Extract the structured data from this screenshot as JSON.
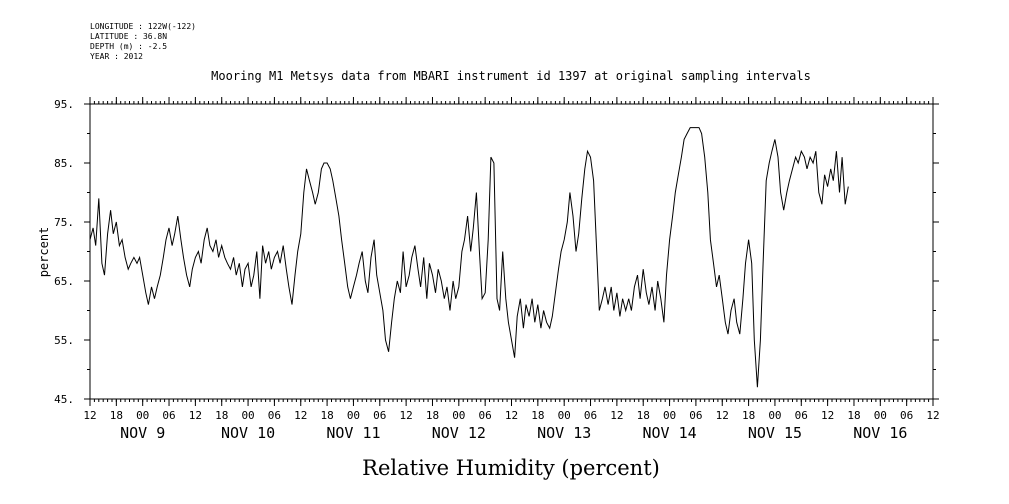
{
  "metadata": {
    "longitude": "LONGITUDE : 122W(-122)",
    "latitude": "LATITUDE : 36.8N",
    "depth": "DEPTH (m) : -2.5",
    "year": "YEAR : 2012"
  },
  "chart_data": {
    "type": "line",
    "title": "Mooring M1 Metsys data from MBARI instrument id 1397 at original sampling intervals",
    "xlabel": "Relative Humidity (percent)",
    "ylabel": "percent",
    "ylim": [
      45,
      95
    ],
    "y_ticks": [
      "95.",
      "85.",
      "75.",
      "65.",
      "55.",
      "45."
    ],
    "y_tick_values": [
      95,
      85,
      75,
      65,
      55,
      45
    ],
    "x_hour_labels": [
      "12",
      "18",
      "00",
      "06",
      "12",
      "18",
      "00",
      "06",
      "12",
      "18",
      "00",
      "06",
      "12",
      "18",
      "00",
      "06",
      "12",
      "18",
      "00",
      "06",
      "12",
      "18",
      "00",
      "06",
      "12",
      "18",
      "00",
      "06",
      "12",
      "18",
      "00",
      "06",
      "12"
    ],
    "x_range_hours": [
      12,
      204
    ],
    "x_date_labels": [
      {
        "label": "NOV  9",
        "hour": 24
      },
      {
        "label": "NOV 10",
        "hour": 48
      },
      {
        "label": "NOV 11",
        "hour": 72
      },
      {
        "label": "NOV 12",
        "hour": 96
      },
      {
        "label": "NOV 13",
        "hour": 120
      },
      {
        "label": "NOV 14",
        "hour": 144
      },
      {
        "label": "NOV 15",
        "hour": 168
      },
      {
        "label": "NOV 16",
        "hour": 192
      }
    ],
    "x_units": "hours from 2012-11-08 00:00",
    "grid": false,
    "series": [
      {
        "points": [
          [
            12.0,
            72
          ],
          [
            12.7,
            74
          ],
          [
            13.3,
            71
          ],
          [
            14.0,
            79
          ],
          [
            14.7,
            68
          ],
          [
            15.3,
            66
          ],
          [
            16.0,
            73
          ],
          [
            16.7,
            77
          ],
          [
            17.3,
            73
          ],
          [
            18.0,
            75
          ],
          [
            18.7,
            71
          ],
          [
            19.3,
            72
          ],
          [
            20.0,
            69
          ],
          [
            20.7,
            67
          ],
          [
            21.3,
            68
          ],
          [
            22.0,
            69
          ],
          [
            22.7,
            68
          ],
          [
            23.3,
            69
          ],
          [
            24.0,
            66
          ],
          [
            24.7,
            63
          ],
          [
            25.3,
            61
          ],
          [
            26.0,
            64
          ],
          [
            26.7,
            62
          ],
          [
            27.3,
            64
          ],
          [
            28.0,
            66
          ],
          [
            28.7,
            69
          ],
          [
            29.3,
            72
          ],
          [
            30.0,
            74
          ],
          [
            30.7,
            71
          ],
          [
            31.3,
            73
          ],
          [
            32.0,
            76
          ],
          [
            32.7,
            72
          ],
          [
            33.3,
            69
          ],
          [
            34.0,
            66
          ],
          [
            34.7,
            64
          ],
          [
            35.3,
            67
          ],
          [
            36.0,
            69
          ],
          [
            36.7,
            70
          ],
          [
            37.3,
            68
          ],
          [
            38.0,
            72
          ],
          [
            38.7,
            74
          ],
          [
            39.3,
            71
          ],
          [
            40.0,
            70
          ],
          [
            40.7,
            72
          ],
          [
            41.3,
            69
          ],
          [
            42.0,
            71
          ],
          [
            42.7,
            69
          ],
          [
            43.3,
            68
          ],
          [
            44.0,
            67
          ],
          [
            44.7,
            69
          ],
          [
            45.3,
            66
          ],
          [
            46.0,
            68
          ],
          [
            46.7,
            64
          ],
          [
            47.3,
            67
          ],
          [
            48.0,
            68
          ],
          [
            48.7,
            64
          ],
          [
            49.3,
            66
          ],
          [
            50.0,
            70
          ],
          [
            50.7,
            62
          ],
          [
            51.3,
            71
          ],
          [
            52.0,
            68
          ],
          [
            52.7,
            70
          ],
          [
            53.3,
            67
          ],
          [
            54.0,
            69
          ],
          [
            54.7,
            70
          ],
          [
            55.3,
            68
          ],
          [
            56.0,
            71
          ],
          [
            56.7,
            67
          ],
          [
            57.3,
            64
          ],
          [
            58.0,
            61
          ],
          [
            58.7,
            66
          ],
          [
            59.3,
            70
          ],
          [
            60.0,
            73
          ],
          [
            60.7,
            80
          ],
          [
            61.3,
            84
          ],
          [
            62.0,
            82
          ],
          [
            62.7,
            80
          ],
          [
            63.3,
            78
          ],
          [
            64.0,
            80
          ],
          [
            64.7,
            84
          ],
          [
            65.3,
            85
          ],
          [
            66.0,
            85
          ],
          [
            66.7,
            84
          ],
          [
            67.3,
            82
          ],
          [
            68.0,
            79
          ],
          [
            68.7,
            76
          ],
          [
            69.3,
            72
          ],
          [
            70.0,
            68
          ],
          [
            70.7,
            64
          ],
          [
            71.3,
            62
          ],
          [
            72.0,
            64
          ],
          [
            72.7,
            66
          ],
          [
            73.3,
            68
          ],
          [
            74.0,
            70
          ],
          [
            74.7,
            65
          ],
          [
            75.3,
            63
          ],
          [
            76.0,
            69
          ],
          [
            76.7,
            72
          ],
          [
            77.3,
            66
          ],
          [
            78.0,
            63
          ],
          [
            78.7,
            60
          ],
          [
            79.3,
            55
          ],
          [
            80.0,
            53
          ],
          [
            80.7,
            58
          ],
          [
            81.3,
            62
          ],
          [
            82.0,
            65
          ],
          [
            82.7,
            63
          ],
          [
            83.3,
            70
          ],
          [
            84.0,
            64
          ],
          [
            84.7,
            66
          ],
          [
            85.3,
            69
          ],
          [
            86.0,
            71
          ],
          [
            86.7,
            67
          ],
          [
            87.3,
            64
          ],
          [
            88.0,
            69
          ],
          [
            88.7,
            62
          ],
          [
            89.3,
            68
          ],
          [
            90.0,
            66
          ],
          [
            90.7,
            63
          ],
          [
            91.3,
            67
          ],
          [
            92.0,
            65
          ],
          [
            92.7,
            62
          ],
          [
            93.3,
            64
          ],
          [
            94.0,
            60
          ],
          [
            94.7,
            65
          ],
          [
            95.3,
            62
          ],
          [
            96.0,
            64
          ],
          [
            96.7,
            70
          ],
          [
            97.3,
            72
          ],
          [
            98.0,
            76
          ],
          [
            98.7,
            70
          ],
          [
            99.3,
            74
          ],
          [
            100.0,
            80
          ],
          [
            100.7,
            70
          ],
          [
            101.3,
            62
          ],
          [
            102.0,
            63
          ],
          [
            102.7,
            72
          ],
          [
            103.3,
            86
          ],
          [
            104.0,
            85
          ],
          [
            104.7,
            62
          ],
          [
            105.3,
            60
          ],
          [
            106.0,
            70
          ],
          [
            106.7,
            62
          ],
          [
            107.3,
            58
          ],
          [
            108.0,
            55
          ],
          [
            108.7,
            52
          ],
          [
            109.3,
            59
          ],
          [
            110.0,
            62
          ],
          [
            110.7,
            57
          ],
          [
            111.3,
            61
          ],
          [
            112.0,
            59
          ],
          [
            112.7,
            62
          ],
          [
            113.3,
            58
          ],
          [
            114.0,
            61
          ],
          [
            114.7,
            57
          ],
          [
            115.3,
            60
          ],
          [
            116.0,
            58
          ],
          [
            116.7,
            57
          ],
          [
            117.3,
            59
          ],
          [
            118.0,
            63
          ],
          [
            118.7,
            67
          ],
          [
            119.3,
            70
          ],
          [
            120.0,
            72
          ],
          [
            120.7,
            75
          ],
          [
            121.3,
            80
          ],
          [
            122.0,
            76
          ],
          [
            122.7,
            70
          ],
          [
            123.3,
            73
          ],
          [
            124.0,
            79
          ],
          [
            124.7,
            84
          ],
          [
            125.3,
            87
          ],
          [
            126.0,
            86
          ],
          [
            126.7,
            82
          ],
          [
            127.3,
            72
          ],
          [
            128.0,
            60
          ],
          [
            128.7,
            62
          ],
          [
            129.3,
            64
          ],
          [
            130.0,
            61
          ],
          [
            130.7,
            64
          ],
          [
            131.3,
            60
          ],
          [
            132.0,
            63
          ],
          [
            132.7,
            59
          ],
          [
            133.3,
            62
          ],
          [
            134.0,
            60
          ],
          [
            134.7,
            62
          ],
          [
            135.3,
            60
          ],
          [
            136.0,
            64
          ],
          [
            136.7,
            66
          ],
          [
            137.3,
            62
          ],
          [
            138.0,
            67
          ],
          [
            138.7,
            63
          ],
          [
            139.3,
            61
          ],
          [
            140.0,
            64
          ],
          [
            140.7,
            60
          ],
          [
            141.3,
            65
          ],
          [
            142.0,
            62
          ],
          [
            142.7,
            58
          ],
          [
            143.3,
            66
          ],
          [
            144.0,
            72
          ],
          [
            144.7,
            76
          ],
          [
            145.3,
            80
          ],
          [
            146.0,
            83
          ],
          [
            146.7,
            86
          ],
          [
            147.3,
            89
          ],
          [
            148.0,
            90
          ],
          [
            148.7,
            91
          ],
          [
            149.3,
            91
          ],
          [
            150.0,
            91
          ],
          [
            150.7,
            91
          ],
          [
            151.3,
            90
          ],
          [
            152.0,
            86
          ],
          [
            152.7,
            80
          ],
          [
            153.3,
            72
          ],
          [
            154.0,
            68
          ],
          [
            154.7,
            64
          ],
          [
            155.3,
            66
          ],
          [
            156.0,
            62
          ],
          [
            156.7,
            58
          ],
          [
            157.3,
            56
          ],
          [
            158.0,
            60
          ],
          [
            158.7,
            62
          ],
          [
            159.3,
            58
          ],
          [
            160.0,
            56
          ],
          [
            160.7,
            62
          ],
          [
            161.3,
            68
          ],
          [
            162.0,
            72
          ],
          [
            162.7,
            68
          ],
          [
            163.3,
            55
          ],
          [
            164.0,
            47
          ],
          [
            164.7,
            55
          ],
          [
            165.3,
            68
          ],
          [
            166.0,
            82
          ],
          [
            166.7,
            85
          ],
          [
            167.3,
            87
          ],
          [
            168.0,
            89
          ],
          [
            168.7,
            86
          ],
          [
            169.3,
            80
          ],
          [
            170.0,
            77
          ],
          [
            170.7,
            80
          ],
          [
            171.3,
            82
          ],
          [
            172.0,
            84
          ],
          [
            172.7,
            86
          ],
          [
            173.3,
            85
          ],
          [
            174.0,
            87
          ],
          [
            174.7,
            86
          ],
          [
            175.3,
            84
          ],
          [
            176.0,
            86
          ],
          [
            176.7,
            85
          ],
          [
            177.3,
            87
          ],
          [
            178.0,
            80
          ],
          [
            178.7,
            78
          ],
          [
            179.3,
            83
          ],
          [
            180.0,
            81
          ],
          [
            180.7,
            84
          ],
          [
            181.3,
            82
          ],
          [
            182.0,
            87
          ],
          [
            182.7,
            80
          ],
          [
            183.3,
            86
          ],
          [
            184.0,
            78
          ],
          [
            184.7,
            81
          ]
        ]
      }
    ]
  }
}
